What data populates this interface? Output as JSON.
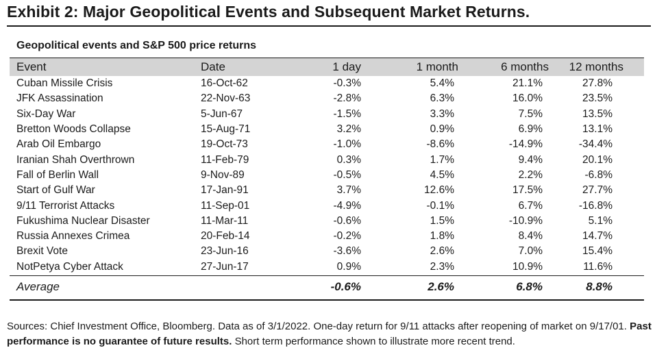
{
  "exhibit_title": "Exhibit 2: Major Geopolitical Events and Subsequent Market Returns.",
  "table_caption": "Geopolitical events and S&P 500 price returns",
  "columns": [
    "Event",
    "Date",
    "1 day",
    "1 month",
    "6 months",
    "12 months"
  ],
  "rows": [
    {
      "event": "Cuban Missile Crisis",
      "date": "16-Oct-62",
      "d1": "-0.3%",
      "m1": "5.4%",
      "m6": "21.1%",
      "m12": "27.8%"
    },
    {
      "event": "JFK Assassination",
      "date": "22-Nov-63",
      "d1": "-2.8%",
      "m1": "6.3%",
      "m6": "16.0%",
      "m12": "23.5%"
    },
    {
      "event": "Six-Day War",
      "date": "5-Jun-67",
      "d1": "-1.5%",
      "m1": "3.3%",
      "m6": "7.5%",
      "m12": "13.5%"
    },
    {
      "event": "Bretton Woods Collapse",
      "date": "15-Aug-71",
      "d1": "3.2%",
      "m1": "0.9%",
      "m6": "6.9%",
      "m12": "13.1%"
    },
    {
      "event": "Arab Oil Embargo",
      "date": "19-Oct-73",
      "d1": "-1.0%",
      "m1": "-8.6%",
      "m6": "-14.9%",
      "m12": "-34.4%"
    },
    {
      "event": "Iranian Shah Overthrown",
      "date": "11-Feb-79",
      "d1": "0.3%",
      "m1": "1.7%",
      "m6": "9.4%",
      "m12": "20.1%"
    },
    {
      "event": "Fall of Berlin Wall",
      "date": "9-Nov-89",
      "d1": "-0.5%",
      "m1": "4.5%",
      "m6": "2.2%",
      "m12": "-6.8%"
    },
    {
      "event": "Start of Gulf War",
      "date": "17-Jan-91",
      "d1": "3.7%",
      "m1": "12.6%",
      "m6": "17.5%",
      "m12": "27.7%"
    },
    {
      "event": "9/11 Terrorist Attacks",
      "date": "11-Sep-01",
      "d1": "-4.9%",
      "m1": "-0.1%",
      "m6": "6.7%",
      "m12": "-16.8%"
    },
    {
      "event": "Fukushima Nuclear Disaster",
      "date": "11-Mar-11",
      "d1": "-0.6%",
      "m1": "1.5%",
      "m6": "-10.9%",
      "m12": "5.1%"
    },
    {
      "event": "Russia Annexes Crimea",
      "date": "20-Feb-14",
      "d1": "-0.2%",
      "m1": "1.8%",
      "m6": "8.4%",
      "m12": "14.7%"
    },
    {
      "event": "Brexit Vote",
      "date": "23-Jun-16",
      "d1": "-3.6%",
      "m1": "2.6%",
      "m6": "7.0%",
      "m12": "15.4%"
    },
    {
      "event": "NotPetya Cyber Attack",
      "date": "27-Jun-17",
      "d1": "0.9%",
      "m1": "2.3%",
      "m6": "10.9%",
      "m12": "11.6%"
    }
  ],
  "average": {
    "label": "Average",
    "d1": "-0.6%",
    "m1": "2.6%",
    "m6": "6.8%",
    "m12": "8.8%"
  },
  "footnote": {
    "sources": "Sources: Chief Investment Office, Bloomberg. Data as of 3/1/2022. One-day return for 9/11 attacks after reopening of market on 9/17/01.",
    "disclaimer": "Past performance is no guarantee of future results.",
    "trailing": "Short term performance shown to illustrate more recent trend."
  },
  "colors": {
    "header_band": "#d4d4d4",
    "text": "#1a1a1a",
    "rule": "#1a1a1a"
  }
}
